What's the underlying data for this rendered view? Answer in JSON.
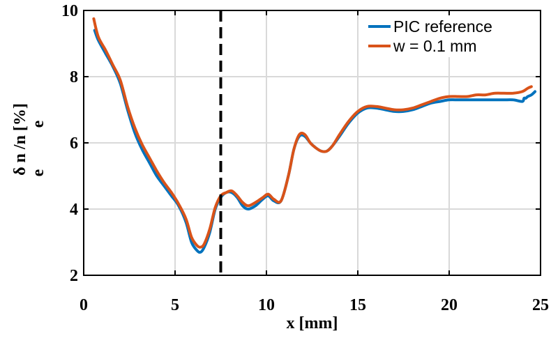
{
  "chart_data": {
    "type": "line",
    "xlabel": "x [mm]",
    "ylabel": "δ n /n [%]",
    "ylabel_subscript": "e",
    "xlim": [
      0,
      25
    ],
    "ylim": [
      2,
      10
    ],
    "xticks": [
      0,
      5,
      10,
      15,
      20,
      25
    ],
    "yticks": [
      2,
      4,
      6,
      8,
      10
    ],
    "xtick_labels": [
      "0",
      "5",
      "10",
      "15",
      "20",
      "25"
    ],
    "ytick_labels": [
      "2",
      "4",
      "6",
      "8",
      "10"
    ],
    "grid": true,
    "legend_position": "top-right",
    "reference_line": {
      "x": 7.5,
      "style": "dashed",
      "color": "#000000"
    },
    "series": [
      {
        "name": "PIC reference",
        "color": "#0072BD",
        "x": [
          0.6,
          0.8,
          1.2,
          1.6,
          2.0,
          2.4,
          2.8,
          3.2,
          3.6,
          4.0,
          4.4,
          4.8,
          5.2,
          5.6,
          5.9,
          6.2,
          6.4,
          6.6,
          6.9,
          7.2,
          7.5,
          7.8,
          8.1,
          8.4,
          8.7,
          9.0,
          9.4,
          9.8,
          10.1,
          10.4,
          10.8,
          11.2,
          11.5,
          11.8,
          12.1,
          12.4,
          12.7,
          13.0,
          13.3,
          13.6,
          14.0,
          14.5,
          15.0,
          15.5,
          16.0,
          16.5,
          17.0,
          17.5,
          18.0,
          18.5,
          19.0,
          19.5,
          20.0,
          20.5,
          21.0,
          21.5,
          22.0,
          22.5,
          23.0,
          23.5,
          24.0,
          24.1,
          24.2,
          24.3,
          24.5,
          24.7
        ],
        "y": [
          9.4,
          9.1,
          8.7,
          8.3,
          7.8,
          7.0,
          6.3,
          5.8,
          5.4,
          5.0,
          4.7,
          4.4,
          4.1,
          3.6,
          3.0,
          2.75,
          2.7,
          2.85,
          3.3,
          4.0,
          4.35,
          4.5,
          4.5,
          4.35,
          4.1,
          4.0,
          4.1,
          4.3,
          4.4,
          4.25,
          4.25,
          5.0,
          5.8,
          6.2,
          6.2,
          6.0,
          5.85,
          5.75,
          5.75,
          5.9,
          6.2,
          6.6,
          6.9,
          7.05,
          7.05,
          7.0,
          6.95,
          6.95,
          7.0,
          7.1,
          7.2,
          7.25,
          7.3,
          7.3,
          7.3,
          7.3,
          7.3,
          7.3,
          7.3,
          7.3,
          7.25,
          7.35,
          7.35,
          7.4,
          7.45,
          7.55
        ]
      },
      {
        "name": "w = 0.1 mm",
        "color": "#D95319",
        "x": [
          0.55,
          0.8,
          1.2,
          1.6,
          2.0,
          2.4,
          2.8,
          3.2,
          3.6,
          4.0,
          4.4,
          4.8,
          5.2,
          5.6,
          5.9,
          6.2,
          6.4,
          6.6,
          6.9,
          7.2,
          7.5,
          7.8,
          8.1,
          8.4,
          8.7,
          9.0,
          9.4,
          9.8,
          10.1,
          10.4,
          10.8,
          11.2,
          11.5,
          11.8,
          12.1,
          12.4,
          12.7,
          13.0,
          13.3,
          13.6,
          14.0,
          14.5,
          15.0,
          15.5,
          16.0,
          16.5,
          17.0,
          17.5,
          18.0,
          18.5,
          19.0,
          19.5,
          20.0,
          20.5,
          21.0,
          21.5,
          22.0,
          22.5,
          23.0,
          23.5,
          24.0,
          24.3,
          24.5
        ],
        "y": [
          9.75,
          9.2,
          8.8,
          8.35,
          7.9,
          7.1,
          6.45,
          5.95,
          5.55,
          5.15,
          4.8,
          4.5,
          4.15,
          3.7,
          3.15,
          2.9,
          2.85,
          2.95,
          3.4,
          4.05,
          4.4,
          4.5,
          4.55,
          4.4,
          4.2,
          4.1,
          4.2,
          4.35,
          4.45,
          4.3,
          4.25,
          5.0,
          5.8,
          6.25,
          6.25,
          6.0,
          5.85,
          5.75,
          5.75,
          5.9,
          6.25,
          6.65,
          6.95,
          7.1,
          7.1,
          7.05,
          7.0,
          7.0,
          7.05,
          7.15,
          7.25,
          7.35,
          7.4,
          7.4,
          7.4,
          7.45,
          7.45,
          7.5,
          7.5,
          7.5,
          7.55,
          7.65,
          7.7
        ]
      }
    ]
  }
}
